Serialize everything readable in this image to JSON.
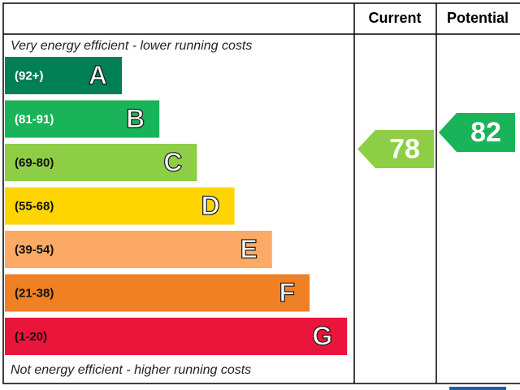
{
  "header": {
    "current": "Current",
    "potential": "Potential"
  },
  "top_note": "Very energy efficient - lower running costs",
  "bottom_note": "Not energy efficient - higher running costs",
  "bands": [
    {
      "range": "(92+)",
      "letter": "A",
      "color": "#008054"
    },
    {
      "range": "(81-91)",
      "letter": "B",
      "color": "#19b459"
    },
    {
      "range": "(69-80)",
      "letter": "C",
      "color": "#8dce46"
    },
    {
      "range": "(55-68)",
      "letter": "D",
      "color": "#ffd500"
    },
    {
      "range": "(39-54)",
      "letter": "E",
      "color": "#fcaa65"
    },
    {
      "range": "(21-38)",
      "letter": "F",
      "color": "#ef8023"
    },
    {
      "range": "(1-20)",
      "letter": "G",
      "color": "#e9153b"
    }
  ],
  "current": {
    "value": 78,
    "color": "#8dce46"
  },
  "potential": {
    "value": 82,
    "color": "#19b459"
  }
}
